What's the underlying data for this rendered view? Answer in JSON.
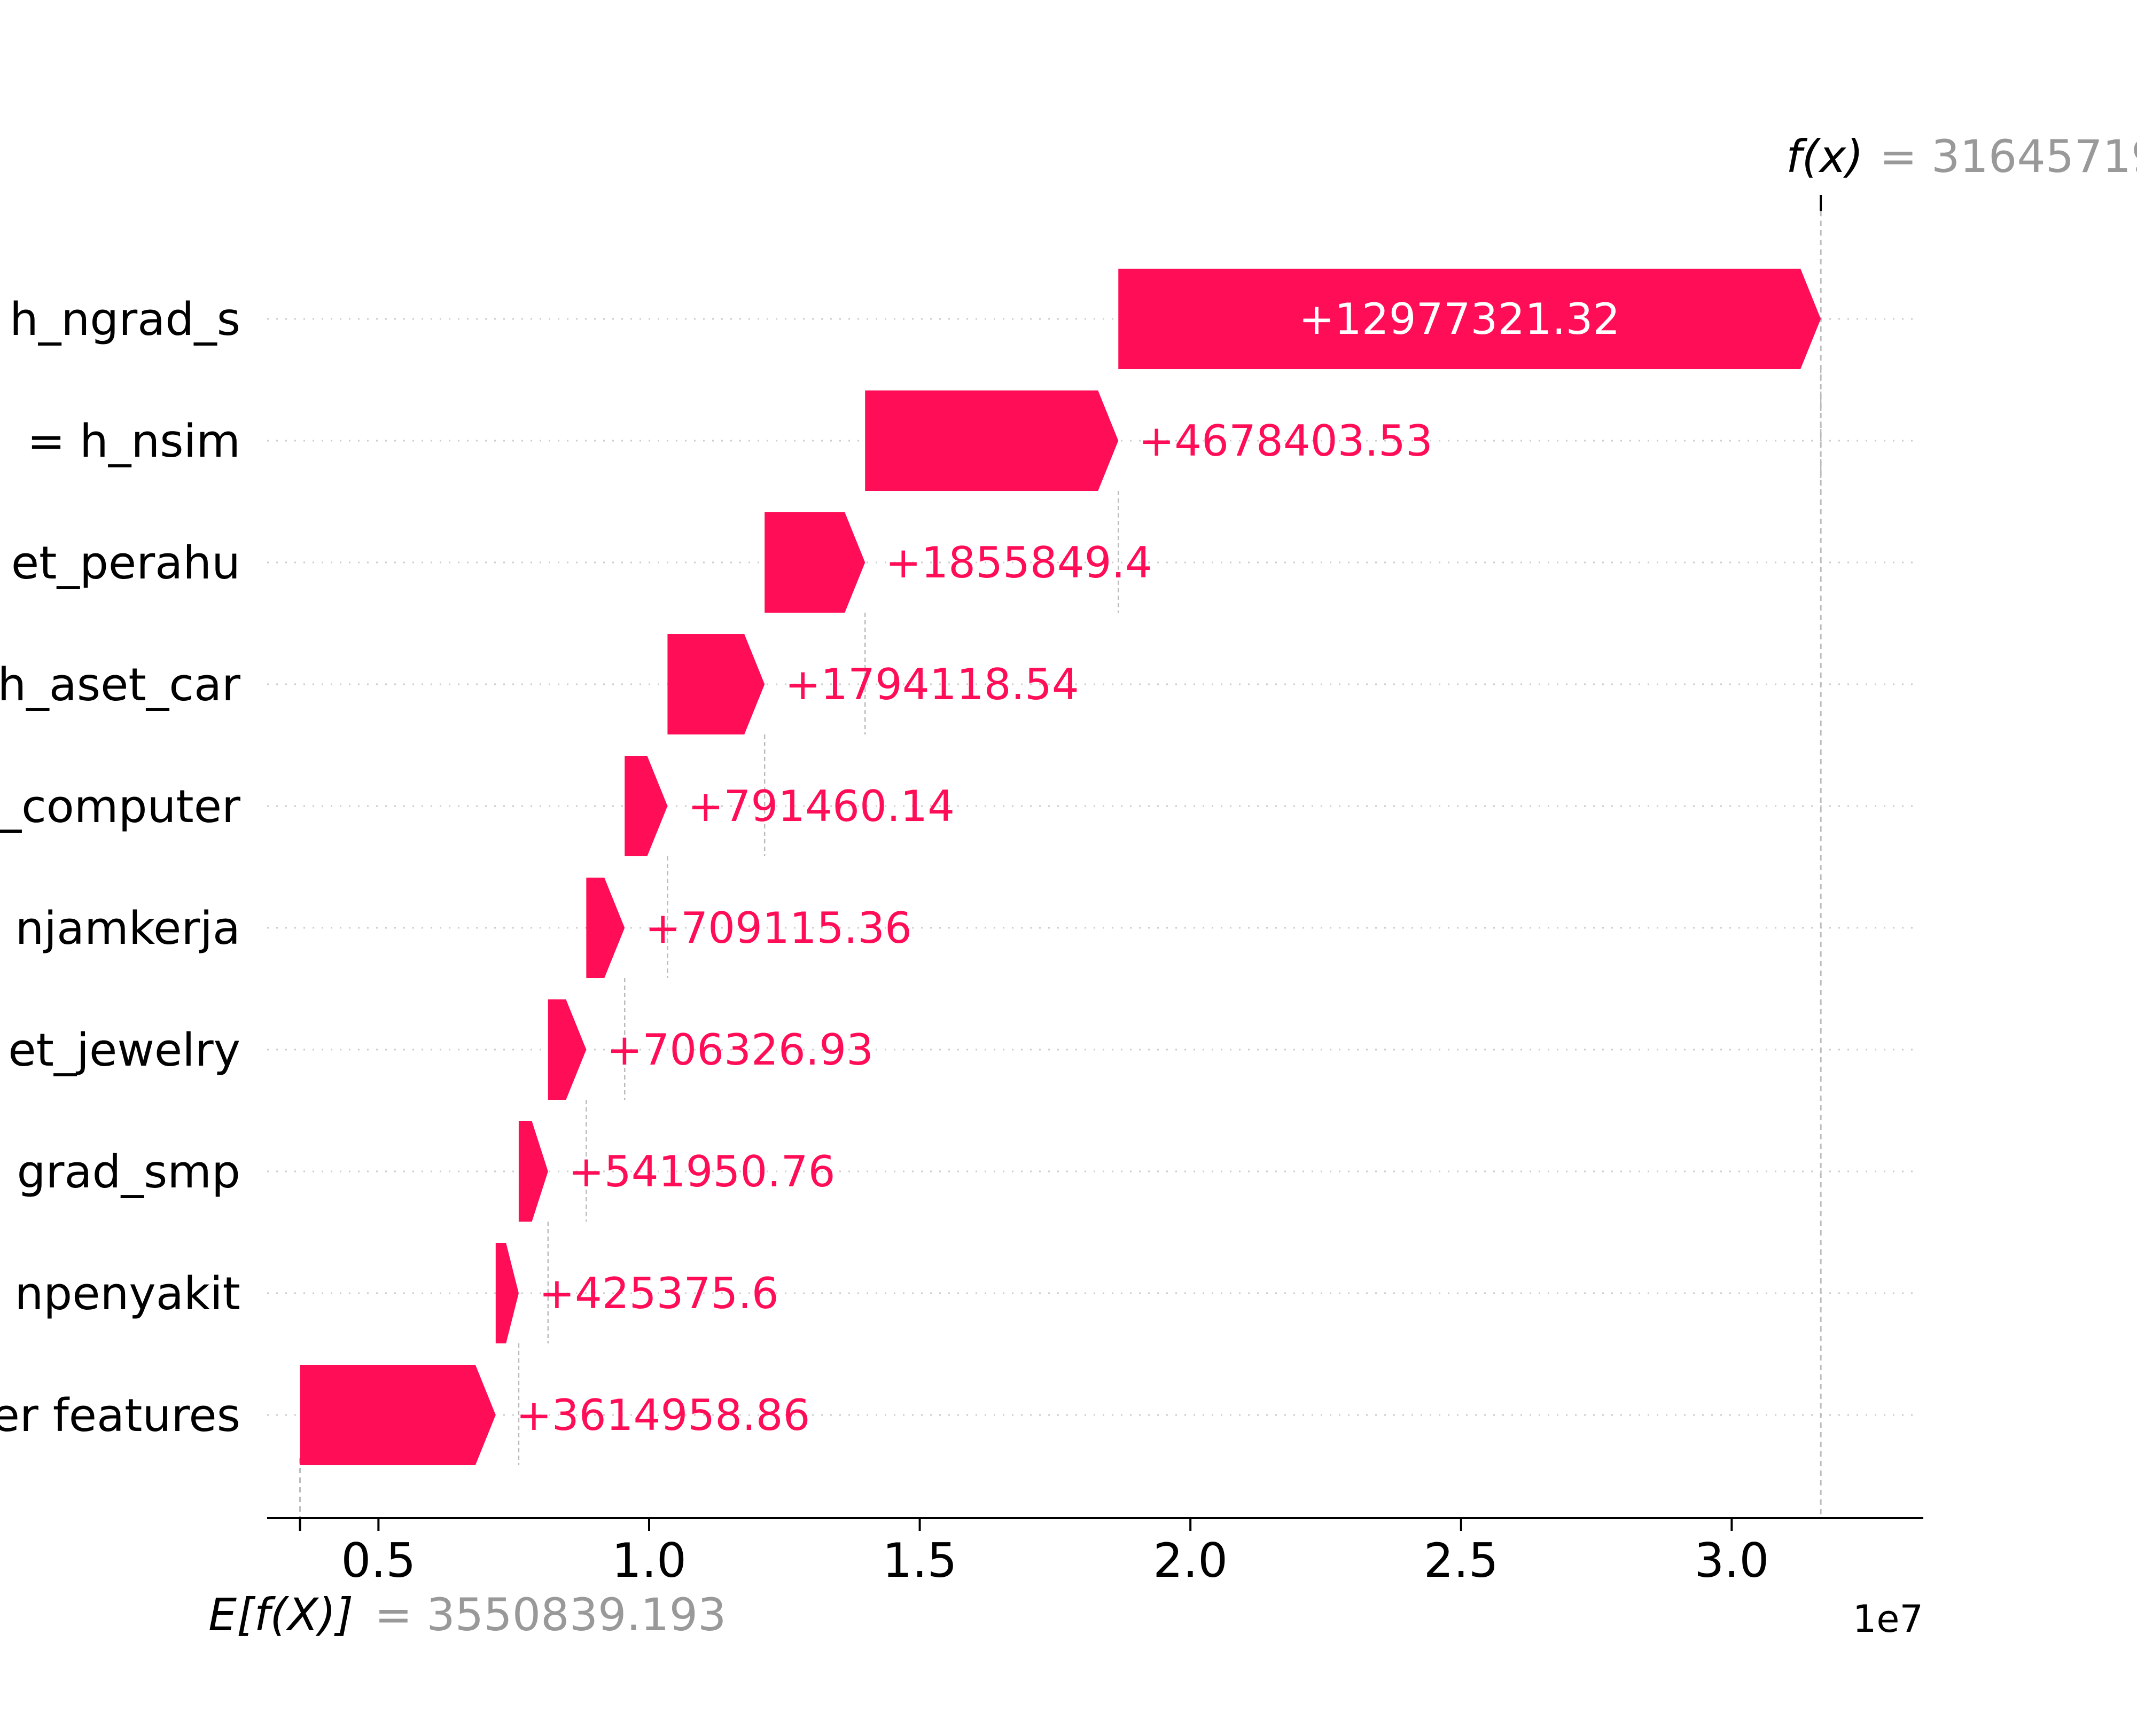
{
  "chart_data": {
    "type": "waterfall",
    "features": [
      {
        "label": "h_ngrad_s",
        "value": 12977321.32,
        "value_label": "+12977321.32"
      },
      {
        "label": "= h_nsim",
        "value": 4678403.53,
        "value_label": "+4678403.53"
      },
      {
        "label": "et_perahu",
        "value": 1855849.4,
        "value_label": "+1855849.4"
      },
      {
        "label": "h_aset_car",
        "value": 1794118.54,
        "value_label": "+1794118.54"
      },
      {
        "label": "_computer",
        "value": 791460.14,
        "value_label": "+791460.14"
      },
      {
        "label": "njamkerja",
        "value": 709115.36,
        "value_label": "+709115.36"
      },
      {
        "label": "et_jewelry",
        "value": 706326.93,
        "value_label": "+706326.93"
      },
      {
        "label": "grad_smp",
        "value": 541950.76,
        "value_label": "+541950.76"
      },
      {
        "label": "npenyakit",
        "value": 425375.6,
        "value_label": "+425375.6"
      },
      {
        "label": "er features",
        "value": 3614958.86,
        "value_label": "+3614958.86"
      }
    ],
    "base_value": 3550839.193,
    "base_label_var": "E[f(X)]",
    "base_label_value": "= 3550839.193",
    "fx_label_var": "f(x)",
    "fx_label_value": "= 31645719",
    "fx_value": 31645719,
    "x_ticks": [
      0.5,
      1.0,
      1.5,
      2.0,
      2.5,
      3.0
    ],
    "x_tick_labels": [
      "0.5",
      "1.0",
      "1.5",
      "2.0",
      "2.5",
      "3.0"
    ],
    "x_multiplier": "1e7",
    "xlim": [
      3200000,
      33500000
    ],
    "colors": {
      "positive": "#ff0d57",
      "axis": "#000000",
      "gray_text": "#999999",
      "guide": "#bbbbbb",
      "grid": "#cccccc"
    }
  }
}
